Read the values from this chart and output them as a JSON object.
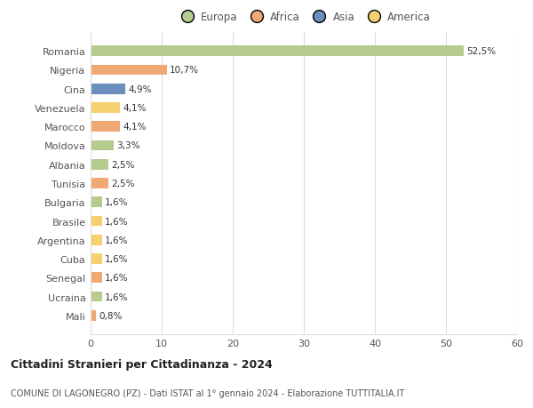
{
  "categories": [
    "Romania",
    "Nigeria",
    "Cina",
    "Venezuela",
    "Marocco",
    "Moldova",
    "Albania",
    "Tunisia",
    "Bulgaria",
    "Brasile",
    "Argentina",
    "Cuba",
    "Senegal",
    "Ucraina",
    "Mali"
  ],
  "values": [
    52.5,
    10.7,
    4.9,
    4.1,
    4.1,
    3.3,
    2.5,
    2.5,
    1.6,
    1.6,
    1.6,
    1.6,
    1.6,
    1.6,
    0.8
  ],
  "labels": [
    "52,5%",
    "10,7%",
    "4,9%",
    "4,1%",
    "4,1%",
    "3,3%",
    "2,5%",
    "2,5%",
    "1,6%",
    "1,6%",
    "1,6%",
    "1,6%",
    "1,6%",
    "1,6%",
    "0,8%"
  ],
  "colors": [
    "#b5cc8e",
    "#f0a875",
    "#6a8fbf",
    "#f5d06e",
    "#f0a875",
    "#b5cc8e",
    "#b5cc8e",
    "#f0a875",
    "#b5cc8e",
    "#f5d06e",
    "#f5d06e",
    "#f5d06e",
    "#f0a875",
    "#b5cc8e",
    "#f0a875"
  ],
  "legend": [
    {
      "label": "Europa",
      "color": "#b5cc8e"
    },
    {
      "label": "Africa",
      "color": "#f0a875"
    },
    {
      "label": "Asia",
      "color": "#6a8fbf"
    },
    {
      "label": "America",
      "color": "#f5d06e"
    }
  ],
  "xlim": [
    0,
    60
  ],
  "xticks": [
    0,
    10,
    20,
    30,
    40,
    50,
    60
  ],
  "title": "Cittadini Stranieri per Cittadinanza - 2024",
  "subtitle": "COMUNE DI LAGONEGRO (PZ) - Dati ISTAT al 1° gennaio 2024 - Elaborazione TUTTITALIA.IT",
  "background_color": "#ffffff",
  "grid_color": "#dddddd"
}
